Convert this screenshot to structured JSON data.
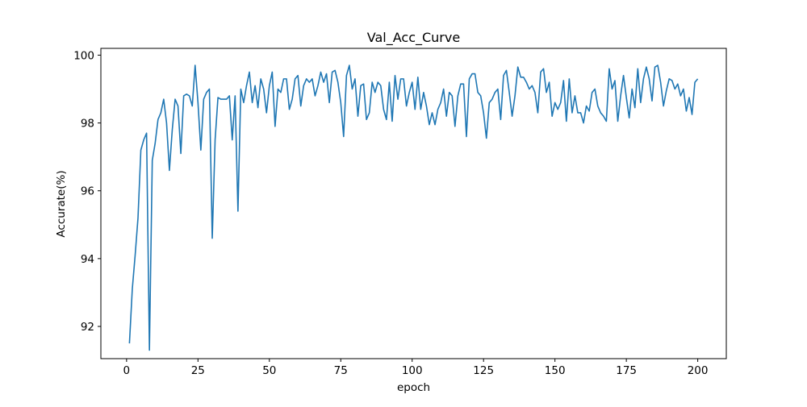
{
  "chart_data": {
    "type": "line",
    "title": "Val_Acc_Curve",
    "xlabel": "epoch",
    "ylabel": "Accurate(%)",
    "xlim": [
      -9,
      210
    ],
    "ylim": [
      91.05,
      100.2
    ],
    "xticks": [
      0,
      25,
      50,
      75,
      100,
      125,
      150,
      175,
      200
    ],
    "yticks": [
      92,
      94,
      96,
      98,
      100
    ],
    "grid": false,
    "legend": "none",
    "line_color": "#1f77b4",
    "series": [
      {
        "x": [
          1,
          2,
          3,
          4,
          5,
          6,
          7,
          8,
          9,
          10,
          11,
          12,
          13,
          14,
          15,
          16,
          17,
          18,
          19,
          20,
          21,
          22,
          23,
          24,
          25,
          26,
          27,
          28,
          29,
          30,
          31,
          32,
          33,
          34,
          35,
          36,
          37,
          38,
          39,
          40,
          41,
          42,
          43,
          44,
          45,
          46,
          47,
          48,
          49,
          50,
          51,
          52,
          53,
          54,
          55,
          56,
          57,
          58,
          59,
          60,
          61,
          62,
          63,
          64,
          65,
          66,
          67,
          68,
          69,
          70,
          71,
          72,
          73,
          74,
          75,
          76,
          77,
          78,
          79,
          80,
          81,
          82,
          83,
          84,
          85,
          86,
          87,
          88,
          89,
          90,
          91,
          92,
          93,
          94,
          95,
          96,
          97,
          98,
          99,
          100,
          101,
          102,
          103,
          104,
          105,
          106,
          107,
          108,
          109,
          110,
          111,
          112,
          113,
          114,
          115,
          116,
          117,
          118,
          119,
          120,
          121,
          122,
          123,
          124,
          125,
          126,
          127,
          128,
          129,
          130,
          131,
          132,
          133,
          134,
          135,
          136,
          137,
          138,
          139,
          140,
          141,
          142,
          143,
          144,
          145,
          146,
          147,
          148,
          149,
          150,
          151,
          152,
          153,
          154,
          155,
          156,
          157,
          158,
          159,
          160,
          161,
          162,
          163,
          164,
          165,
          166,
          167,
          168,
          169,
          170,
          171,
          172,
          173,
          174,
          175,
          176,
          177,
          178,
          179,
          180,
          181,
          182,
          183,
          184,
          185,
          186,
          187,
          188,
          189,
          190,
          191,
          192,
          193,
          194,
          195,
          196,
          197,
          198,
          199,
          200
        ],
        "values": [
          91.5,
          93.1,
          94.1,
          95.2,
          97.2,
          97.5,
          97.7,
          91.3,
          96.9,
          97.4,
          98.1,
          98.3,
          98.7,
          98.0,
          96.6,
          97.8,
          98.7,
          98.5,
          97.1,
          98.8,
          98.85,
          98.8,
          98.5,
          99.7,
          98.6,
          97.2,
          98.7,
          98.9,
          99.0,
          94.6,
          97.5,
          98.75,
          98.7,
          98.7,
          98.7,
          98.8,
          97.5,
          98.8,
          95.4,
          99.0,
          98.6,
          99.1,
          99.5,
          98.6,
          99.1,
          98.45,
          99.3,
          99.0,
          98.3,
          99.1,
          99.5,
          97.9,
          99.0,
          98.9,
          99.3,
          99.3,
          98.4,
          98.7,
          99.3,
          99.4,
          98.5,
          99.1,
          99.3,
          99.2,
          99.3,
          98.8,
          99.1,
          99.5,
          99.2,
          99.45,
          98.6,
          99.5,
          99.55,
          99.2,
          98.6,
          97.6,
          99.4,
          99.7,
          99.0,
          99.3,
          98.2,
          99.1,
          99.15,
          98.1,
          98.3,
          99.2,
          98.9,
          99.2,
          99.1,
          98.4,
          98.1,
          99.2,
          98.05,
          99.4,
          98.7,
          99.3,
          99.3,
          98.5,
          98.9,
          99.2,
          98.4,
          99.35,
          98.4,
          98.9,
          98.5,
          97.95,
          98.3,
          97.95,
          98.4,
          98.6,
          99.0,
          98.2,
          98.9,
          98.8,
          97.9,
          98.8,
          99.15,
          99.15,
          97.6,
          99.3,
          99.45,
          99.45,
          98.9,
          98.8,
          98.3,
          97.55,
          98.6,
          98.7,
          98.9,
          99.0,
          98.1,
          99.4,
          99.55,
          98.9,
          98.2,
          98.8,
          99.65,
          99.35,
          99.35,
          99.2,
          99.0,
          99.1,
          98.9,
          98.3,
          99.5,
          99.6,
          98.9,
          99.2,
          98.2,
          98.6,
          98.4,
          98.6,
          99.25,
          98.05,
          99.3,
          98.3,
          98.8,
          98.3,
          98.3,
          98.0,
          98.5,
          98.35,
          98.9,
          99.0,
          98.5,
          98.3,
          98.2,
          98.05,
          99.6,
          99.0,
          99.25,
          98.05,
          98.8,
          99.4,
          98.75,
          98.15,
          99.0,
          98.45,
          99.6,
          98.6,
          99.3,
          99.65,
          99.3,
          98.65,
          99.65,
          99.7,
          99.2,
          98.5,
          98.95,
          99.3,
          99.25,
          99.0,
          99.15,
          98.8,
          99.0,
          98.35,
          98.75,
          98.25,
          99.2,
          99.3
        ]
      }
    ]
  }
}
